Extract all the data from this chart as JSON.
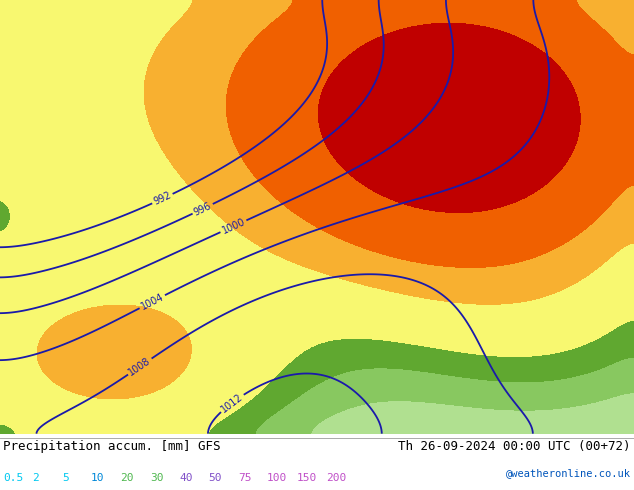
{
  "title_left": "Precipitation accum. [mm] GFS",
  "title_right": "Th 26-09-2024 00:00 UTC (00+72)",
  "credit": "@weatheronline.co.uk",
  "colorbar_levels": [
    0.5,
    2,
    5,
    10,
    20,
    30,
    40,
    50,
    75,
    100,
    150,
    200
  ],
  "figsize": [
    6.34,
    4.9
  ],
  "dpi": 100,
  "font_size_title": 9,
  "font_size_legend": 8,
  "precip_colors": [
    "#e8f6ff",
    "#b8e8ff",
    "#80d0ff",
    "#40b8ff",
    "#d8f0c0",
    "#b0e090",
    "#88c860",
    "#60a830",
    "#f8f870",
    "#f8b030",
    "#f06000",
    "#c00000",
    "#800080"
  ],
  "text_colors_legend": [
    "#00c8f0",
    "#00c8f0",
    "#00c8f0",
    "#0088d8",
    "#50b850",
    "#50b850",
    "#8050c8",
    "#8050c8",
    "#c050c8",
    "#c050c8",
    "#c050c8",
    "#c050c8"
  ]
}
